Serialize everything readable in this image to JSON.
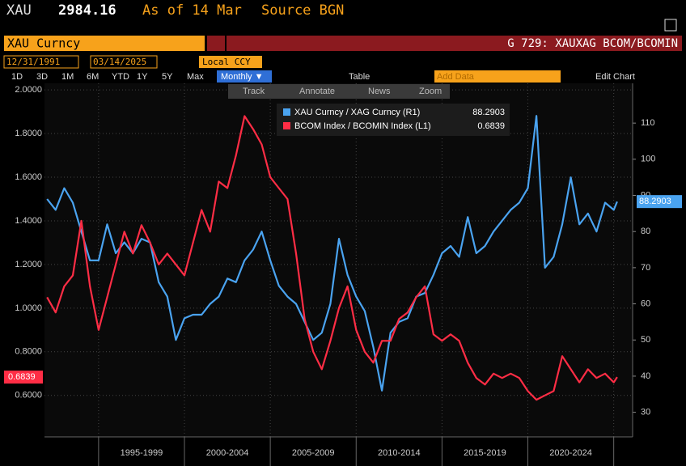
{
  "header": {
    "ticker": "XAU",
    "price": "2984.16",
    "as_of": "As of 14 Mar",
    "source": "Source BGN"
  },
  "toolbar": {
    "security": "XAU Curncy",
    "chart_name": "G 729: XAUXAG BCOM/BCOMIN",
    "start_date": "12/31/1991",
    "end_date": "03/14/2025",
    "currency": "Local CCY",
    "ranges": [
      "1D",
      "3D",
      "1M",
      "6M",
      "YTD",
      "1Y",
      "5Y",
      "Max"
    ],
    "frequency": "Monthly ▼",
    "table": "Table",
    "add_data": "Add Data",
    "edit_chart": "Edit Chart",
    "tools": [
      "Track",
      "Annotate",
      "News",
      "Zoom"
    ]
  },
  "chart_data": {
    "type": "line",
    "x": [
      1992,
      1992.5,
      1993,
      1993.5,
      1994,
      1994.5,
      1995,
      1995.5,
      1996,
      1996.5,
      1997,
      1997.5,
      1998,
      1998.5,
      1999,
      1999.5,
      2000,
      2000.5,
      2001,
      2001.5,
      2002,
      2002.5,
      2003,
      2003.5,
      2004,
      2004.5,
      2005,
      2005.5,
      2006,
      2006.5,
      2007,
      2007.5,
      2008,
      2008.5,
      2009,
      2009.5,
      2010,
      2010.5,
      2011,
      2011.5,
      2012,
      2012.5,
      2013,
      2013.5,
      2014,
      2014.5,
      2015,
      2015.5,
      2016,
      2016.5,
      2017,
      2017.5,
      2018,
      2018.5,
      2019,
      2019.5,
      2020,
      2020.5,
      2021,
      2021.5,
      2022,
      2022.5,
      2023,
      2023.5,
      2024,
      2024.5,
      2025,
      2025.2
    ],
    "xlim": [
      1991.85,
      2026.1
    ],
    "xticks": [
      1995,
      2000,
      2005,
      2010,
      2015,
      2020,
      2025
    ],
    "x_period_labels": [
      "1995-1999",
      "2000-2004",
      "2005-2009",
      "2010-2014",
      "2015-2019",
      "2020-2024"
    ],
    "ylim": [
      0.41,
      2.03
    ],
    "yticks": [
      {
        "value": 0.6,
        "label": "0.6000"
      },
      {
        "value": 0.8,
        "label": "0.8000"
      },
      {
        "value": 1.0,
        "label": "1.0000"
      },
      {
        "value": 1.2,
        "label": "1.2000"
      },
      {
        "value": 1.4,
        "label": "1.4000"
      },
      {
        "value": 1.6,
        "label": "1.6000"
      },
      {
        "value": 1.8,
        "label": "1.8000"
      },
      {
        "value": 2.0,
        "label": "2.0000"
      }
    ],
    "y2lim": [
      23.2,
      121
    ],
    "y2ticks": [
      30,
      40,
      50,
      60,
      70,
      80,
      90,
      100,
      110
    ],
    "grid": true,
    "series": [
      {
        "name": "XAU Curncy / XAG Curncy (R1)",
        "color": "#4aa3f0",
        "axis": "y2",
        "values": [
          89,
          86,
          92,
          88,
          80,
          72,
          72,
          82,
          74,
          77,
          74,
          78,
          77,
          66,
          62,
          50,
          56,
          57,
          57,
          60,
          62,
          67,
          66,
          72,
          75,
          80,
          72,
          65,
          62,
          60,
          55,
          50,
          52,
          60,
          78,
          68,
          62,
          58,
          48,
          36,
          52,
          55,
          56,
          62,
          63,
          68,
          74,
          76,
          73,
          84,
          74,
          76,
          80,
          83,
          86,
          88,
          92,
          112,
          70,
          73,
          82,
          95,
          82,
          85,
          80,
          88,
          86,
          88.2903
        ]
      },
      {
        "name": "BCOM Index / BCOMIN Index (L1)",
        "color": "#ff2d45",
        "axis": "y",
        "values": [
          1.05,
          0.98,
          1.1,
          1.15,
          1.4,
          1.1,
          0.9,
          1.05,
          1.2,
          1.35,
          1.25,
          1.38,
          1.3,
          1.2,
          1.25,
          1.2,
          1.15,
          1.3,
          1.45,
          1.35,
          1.58,
          1.55,
          1.7,
          1.88,
          1.82,
          1.75,
          1.6,
          1.55,
          1.5,
          1.25,
          0.95,
          0.8,
          0.72,
          0.85,
          1.0,
          1.1,
          0.9,
          0.8,
          0.75,
          0.85,
          0.85,
          0.95,
          0.98,
          1.05,
          1.1,
          0.88,
          0.85,
          0.88,
          0.85,
          0.75,
          0.68,
          0.65,
          0.7,
          0.68,
          0.7,
          0.68,
          0.62,
          0.58,
          0.6,
          0.62,
          0.78,
          0.72,
          0.66,
          0.72,
          0.68,
          0.7,
          0.66,
          0.6839
        ]
      }
    ]
  }
}
